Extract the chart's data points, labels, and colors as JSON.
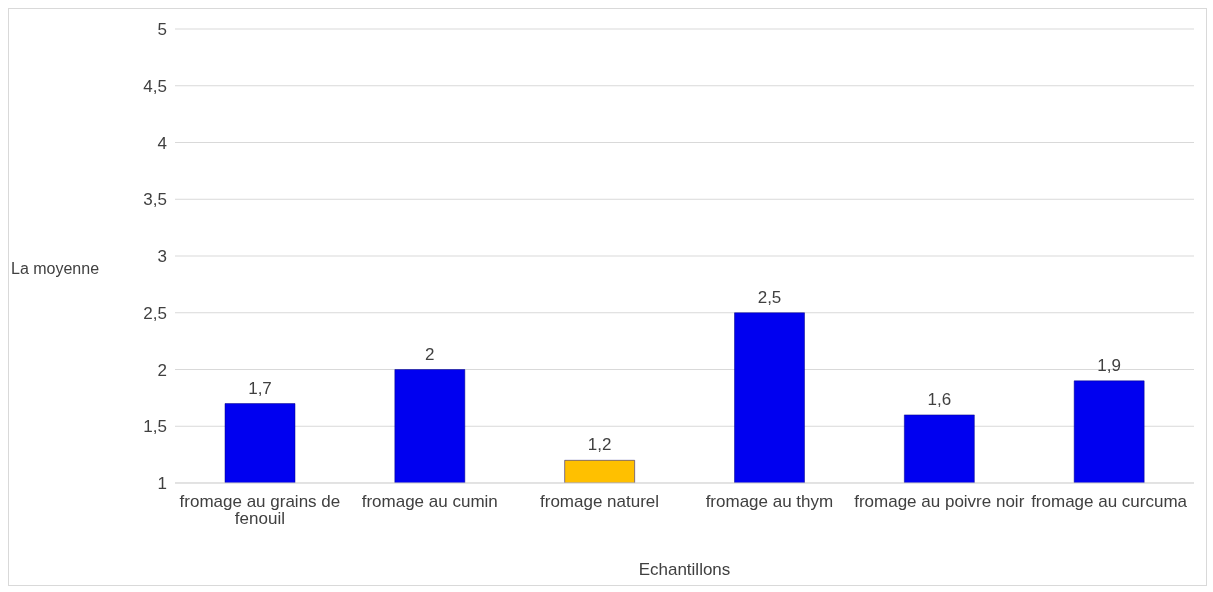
{
  "chart_data": {
    "type": "bar",
    "xlabel": "Echantillons",
    "ylabel": "La moyenne",
    "categories": [
      "fromage au grains de fenouil",
      "fromage au cumin",
      "fromage naturel",
      "fromage au thym",
      "fromage au poivre noir",
      "fromage au curcuma"
    ],
    "values": [
      1.7,
      2,
      1.2,
      2.5,
      1.6,
      1.9
    ],
    "colors": [
      "#0000f0",
      "#0000f0",
      "#ffc000",
      "#0000f0",
      "#0000f0",
      "#0000f0"
    ],
    "value_labels": [
      "1,7",
      "2",
      "1,2",
      "2,5",
      "1,6",
      "1,9"
    ],
    "ylim": [
      1,
      5
    ],
    "yticks": [
      1,
      {
        "value": 1.5,
        "label": "1,5"
      },
      2,
      {
        "value": 2.5,
        "label": "2,5"
      },
      3,
      {
        "value": 3.5,
        "label": "3,5"
      },
      4,
      {
        "value": 4.5,
        "label": "4,5"
      },
      5
    ],
    "grid": "y",
    "legend": false
  }
}
